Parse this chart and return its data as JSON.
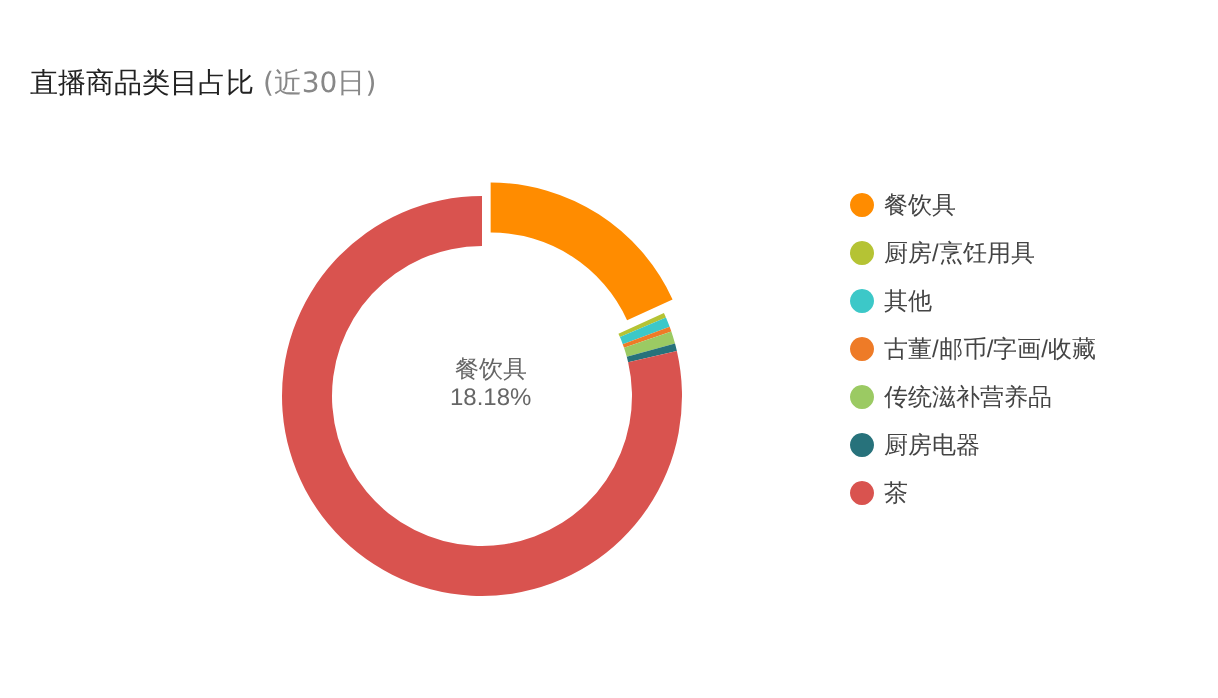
{
  "chart_data": {
    "type": "donut",
    "title": "直播商品类目占比",
    "subtitle": "(近30日)",
    "categories": [
      "餐饮具",
      "厨房/烹饪用具",
      "其他",
      "古董/邮币/字画/收藏",
      "传统滋补营养品",
      "厨房电器",
      "茶"
    ],
    "values": [
      18.18,
      0.4,
      0.8,
      0.4,
      1.0,
      0.6,
      78.62
    ],
    "colors": [
      "#ff8c00",
      "#b5c334",
      "#3cc8c8",
      "#ee7b27",
      "#9bca63",
      "#27727b",
      "#d9534f"
    ],
    "value_labels": [
      "18.18%",
      null,
      null,
      null,
      null,
      null,
      null
    ],
    "legend": "right"
  }
}
